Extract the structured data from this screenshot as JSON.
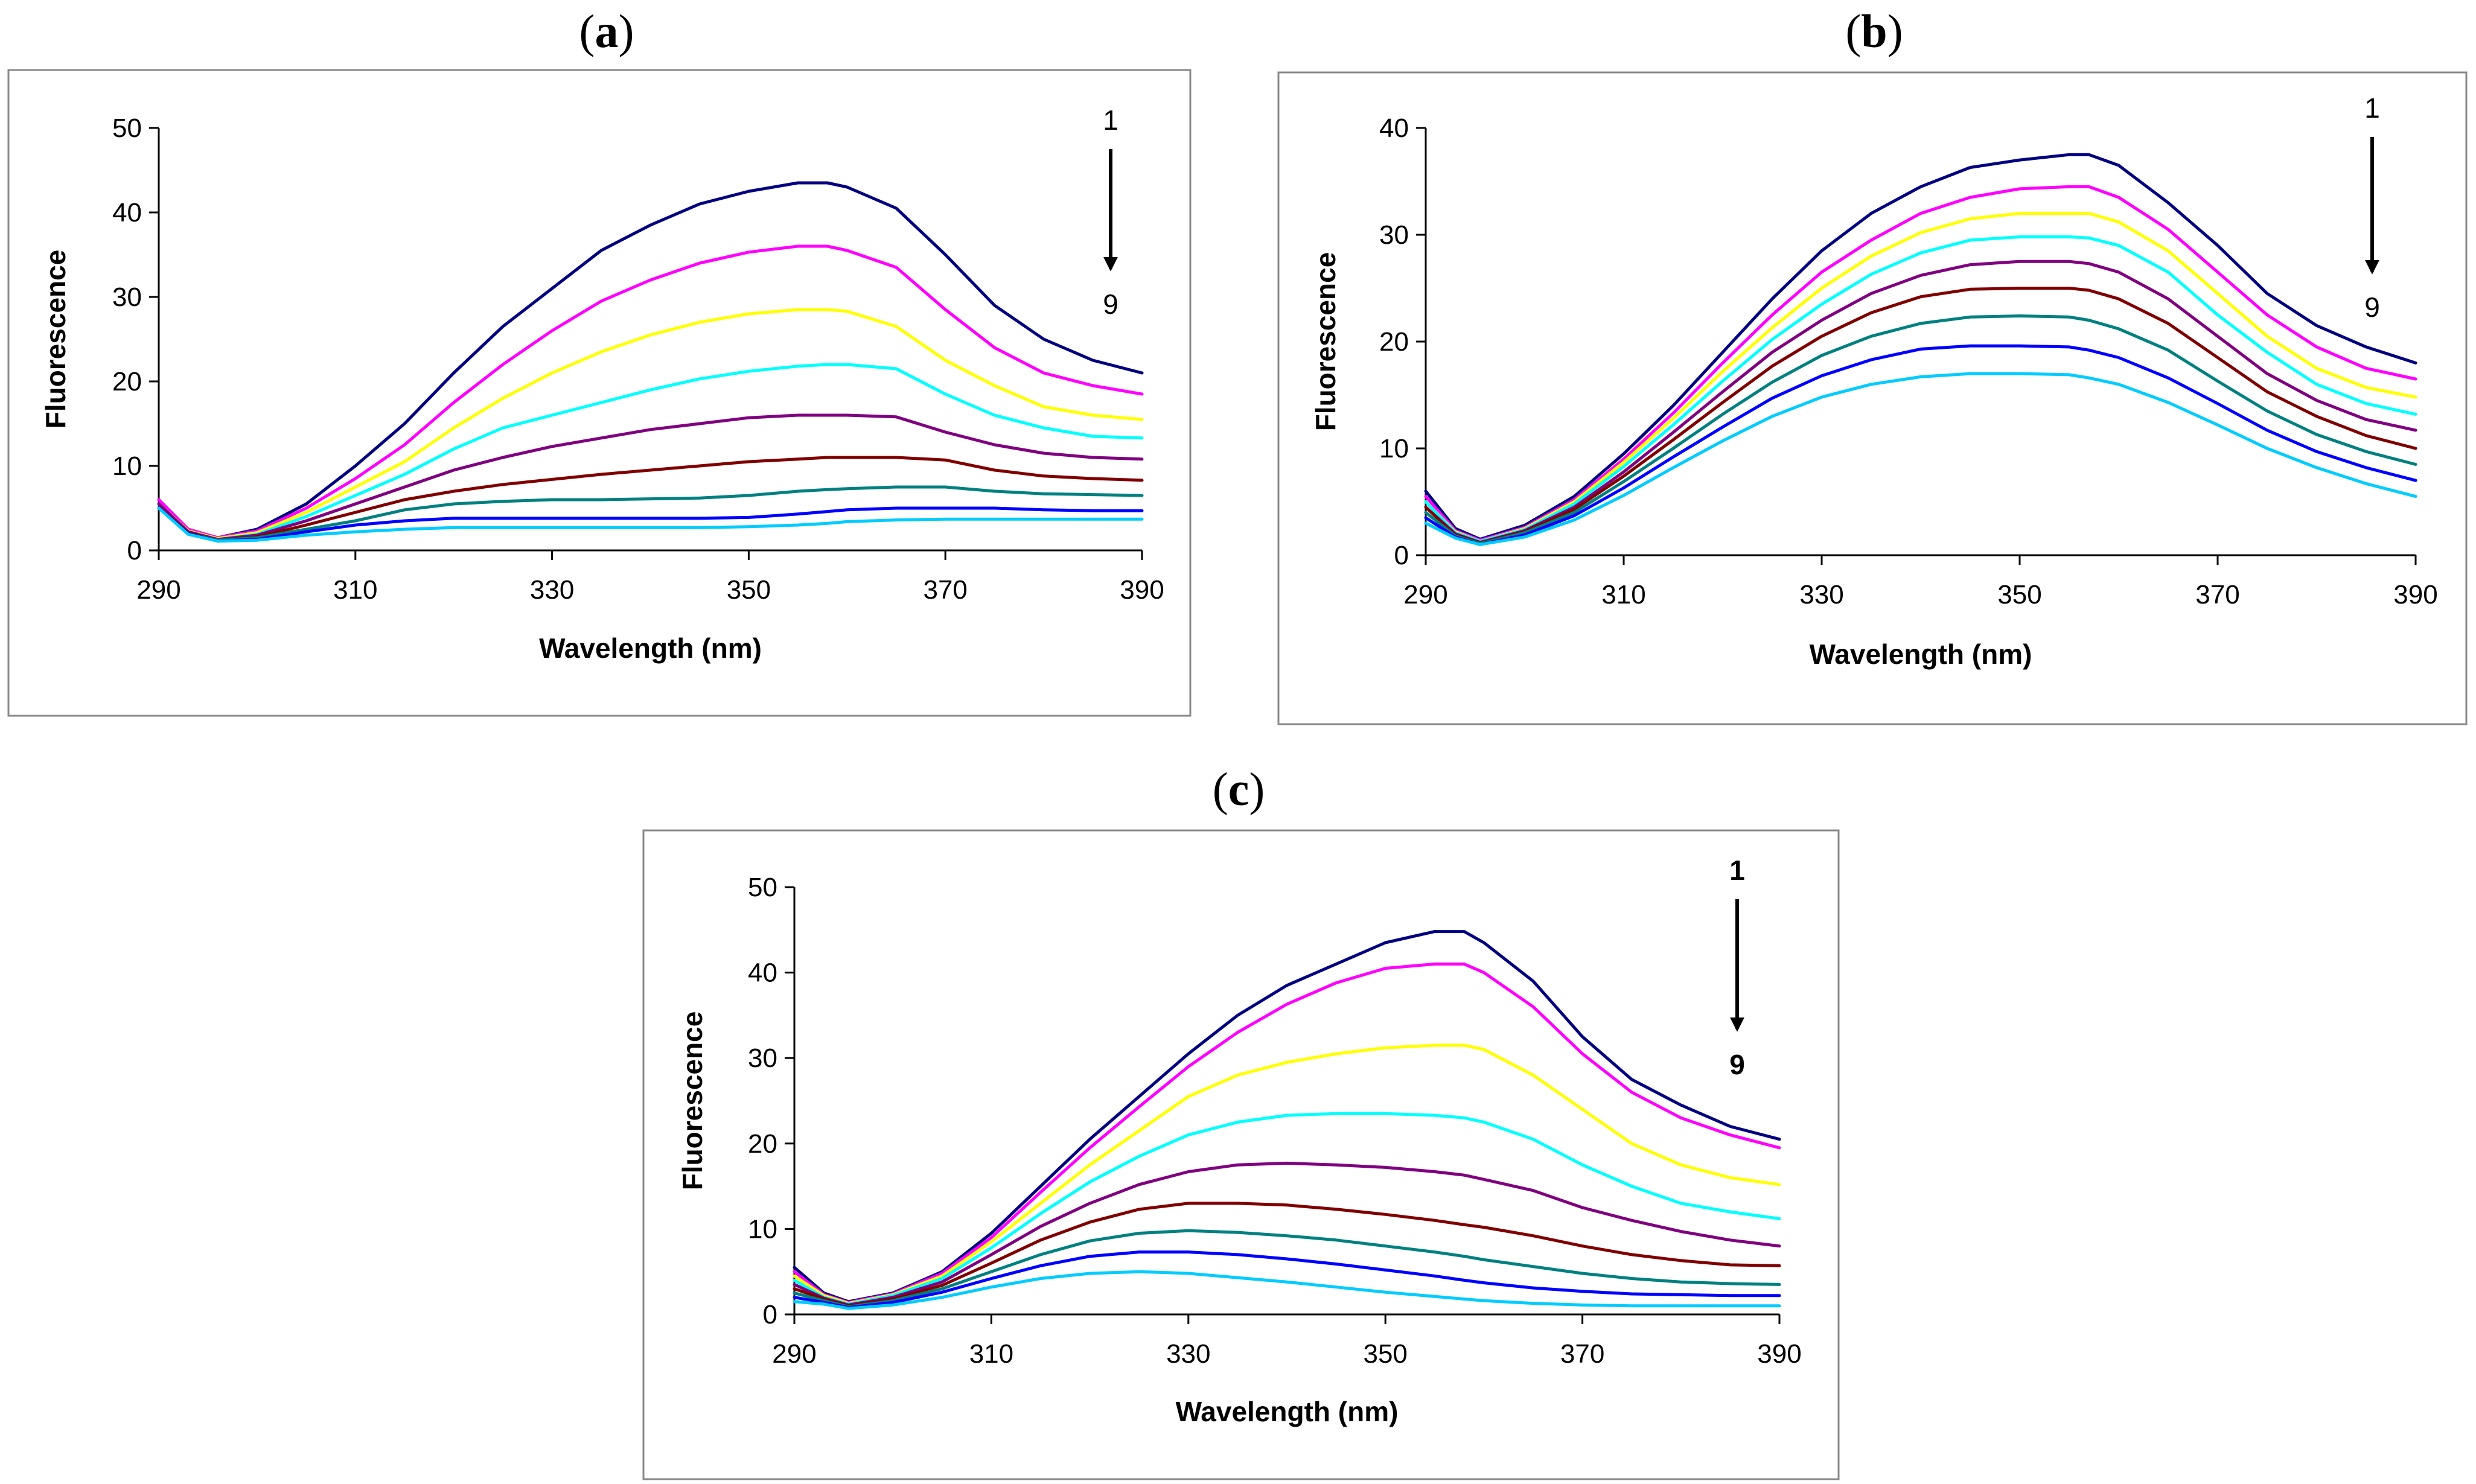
{
  "figure": {
    "panels": [
      {
        "letter": "a",
        "open": "(",
        "close": ")"
      },
      {
        "letter": "b",
        "open": "(",
        "close": ")"
      },
      {
        "letter": "c",
        "open": "(",
        "close": ")"
      }
    ]
  },
  "series_colors": [
    "#000080",
    "#ff00ff",
    "#ffff00",
    "#00ffff",
    "#800080",
    "#800000",
    "#008080",
    "#0000ff",
    "#00ccff"
  ],
  "chart_data": [
    {
      "id": "a",
      "type": "line",
      "xlabel": "Wavelength (nm)",
      "ylabel": "Fluorescence",
      "xlim": [
        290,
        390
      ],
      "ylim": [
        0,
        50
      ],
      "xticks": [
        290,
        310,
        330,
        350,
        370,
        390
      ],
      "yticks": [
        0,
        10,
        20,
        30,
        40,
        50
      ],
      "annotation": {
        "start": "1",
        "end": "9",
        "bold": false
      },
      "x": [
        290,
        293,
        296,
        300,
        305,
        310,
        315,
        320,
        325,
        330,
        335,
        340,
        345,
        350,
        355,
        358,
        360,
        365,
        370,
        375,
        380,
        385,
        390
      ],
      "series": [
        {
          "name": "1",
          "values": [
            6,
            2.5,
            1.5,
            2.5,
            5.5,
            10,
            15,
            21,
            26.5,
            31,
            35.5,
            38.5,
            41,
            42.5,
            43.5,
            43.5,
            43,
            40.5,
            35,
            29,
            25,
            22.5,
            21
          ]
        },
        {
          "name": "2",
          "values": [
            6,
            2.5,
            1.5,
            2.3,
            5,
            8.5,
            12.5,
            17.5,
            22,
            26,
            29.5,
            32,
            34,
            35.3,
            36,
            36,
            35.5,
            33.5,
            28.5,
            24,
            21,
            19.5,
            18.5
          ]
        },
        {
          "name": "3",
          "values": [
            5.5,
            2.3,
            1.4,
            2.1,
            4.5,
            7.5,
            10.5,
            14.5,
            18,
            21,
            23.5,
            25.5,
            27,
            28,
            28.5,
            28.5,
            28.3,
            26.5,
            22.5,
            19.5,
            17,
            16,
            15.5
          ]
        },
        {
          "name": "4",
          "values": [
            5.5,
            2.2,
            1.3,
            1.9,
            4,
            6.5,
            9,
            12,
            14.5,
            16,
            17.5,
            19,
            20.3,
            21.2,
            21.8,
            22,
            22,
            21.5,
            18.5,
            16,
            14.5,
            13.5,
            13.3
          ]
        },
        {
          "name": "5",
          "values": [
            5.5,
            2.2,
            1.3,
            1.8,
            3.5,
            5.5,
            7.5,
            9.5,
            11,
            12.3,
            13.3,
            14.3,
            15,
            15.7,
            16,
            16,
            16,
            15.8,
            14,
            12.5,
            11.5,
            11,
            10.8
          ]
        },
        {
          "name": "6",
          "values": [
            5,
            2.1,
            1.2,
            1.6,
            3,
            4.5,
            6,
            7,
            7.8,
            8.4,
            9,
            9.5,
            10,
            10.5,
            10.8,
            11,
            11,
            11,
            10.7,
            9.5,
            8.8,
            8.5,
            8.3
          ]
        },
        {
          "name": "7",
          "values": [
            5,
            2,
            1.2,
            1.5,
            2.5,
            3.5,
            4.8,
            5.5,
            5.8,
            6,
            6,
            6.1,
            6.2,
            6.5,
            7,
            7.2,
            7.3,
            7.5,
            7.5,
            7,
            6.7,
            6.6,
            6.5
          ]
        },
        {
          "name": "8",
          "values": [
            5,
            2,
            1.1,
            1.3,
            2.2,
            3,
            3.5,
            3.8,
            3.8,
            3.8,
            3.8,
            3.8,
            3.8,
            3.9,
            4.3,
            4.6,
            4.8,
            5,
            5,
            5,
            4.8,
            4.7,
            4.7
          ]
        },
        {
          "name": "9",
          "values": [
            5,
            1.9,
            1.1,
            1.2,
            1.8,
            2.2,
            2.5,
            2.7,
            2.7,
            2.7,
            2.7,
            2.7,
            2.7,
            2.8,
            3,
            3.2,
            3.4,
            3.6,
            3.7,
            3.7,
            3.7,
            3.7,
            3.7
          ]
        }
      ]
    },
    {
      "id": "b",
      "type": "line",
      "xlabel": "Wavelength (nm)",
      "ylabel": "Fluorescence",
      "xlim": [
        290,
        390
      ],
      "ylim": [
        0,
        40
      ],
      "xticks": [
        290,
        310,
        330,
        350,
        370,
        390
      ],
      "yticks": [
        0,
        10,
        20,
        30,
        40
      ],
      "annotation": {
        "start": "1",
        "end": "9",
        "bold": false
      },
      "x": [
        290,
        293,
        295.5,
        300,
        305,
        310,
        315,
        320,
        325,
        330,
        335,
        340,
        345,
        350,
        355,
        357,
        360,
        365,
        370,
        375,
        380,
        385,
        390
      ],
      "series": [
        {
          "name": "1",
          "values": [
            6,
            2.5,
            1.5,
            2.8,
            5.5,
            9.5,
            14,
            19,
            24,
            28.5,
            32,
            34.5,
            36.3,
            37,
            37.5,
            37.5,
            36.5,
            33,
            29,
            24.5,
            21.5,
            19.5,
            18
          ]
        },
        {
          "name": "2",
          "values": [
            5.5,
            2.3,
            1.4,
            2.6,
            5.2,
            9,
            13.3,
            18,
            22.5,
            26.5,
            29.5,
            32,
            33.5,
            34.3,
            34.5,
            34.5,
            33.5,
            30.5,
            26.5,
            22.5,
            19.5,
            17.5,
            16.5
          ]
        },
        {
          "name": "3",
          "values": [
            5,
            2.2,
            1.3,
            2.5,
            5,
            8.7,
            12.8,
            17.2,
            21.3,
            25,
            28,
            30.2,
            31.5,
            32,
            32,
            32,
            31.2,
            28.5,
            24.5,
            20.5,
            17.5,
            15.7,
            14.8
          ]
        },
        {
          "name": "4",
          "values": [
            5,
            2.1,
            1.3,
            2.4,
            4.8,
            8.3,
            12.2,
            16.3,
            20.2,
            23.5,
            26.3,
            28.3,
            29.5,
            29.8,
            29.8,
            29.7,
            29,
            26.5,
            22.5,
            19,
            16,
            14.2,
            13.2
          ]
        },
        {
          "name": "5",
          "values": [
            4.5,
            2,
            1.2,
            2.3,
            4.5,
            7.8,
            11.5,
            15.3,
            19,
            22,
            24.5,
            26.2,
            27.2,
            27.5,
            27.5,
            27.3,
            26.5,
            24,
            20.5,
            17,
            14.5,
            12.7,
            11.7
          ]
        },
        {
          "name": "6",
          "values": [
            4.5,
            1.9,
            1.2,
            2.2,
            4.3,
            7.4,
            10.8,
            14.3,
            17.7,
            20.5,
            22.7,
            24.2,
            24.9,
            25,
            25,
            24.8,
            24,
            21.7,
            18.5,
            15.3,
            13,
            11.2,
            10
          ]
        },
        {
          "name": "7",
          "values": [
            4,
            1.8,
            1.1,
            2.1,
            4,
            6.9,
            10,
            13.2,
            16.2,
            18.7,
            20.5,
            21.7,
            22.3,
            22.4,
            22.3,
            22,
            21.2,
            19.2,
            16.3,
            13.5,
            11.3,
            9.7,
            8.5
          ]
        },
        {
          "name": "8",
          "values": [
            3.5,
            1.7,
            1,
            1.9,
            3.7,
            6.3,
            9.2,
            12,
            14.7,
            16.8,
            18.3,
            19.3,
            19.6,
            19.6,
            19.5,
            19.2,
            18.5,
            16.6,
            14.2,
            11.7,
            9.7,
            8.2,
            7
          ]
        },
        {
          "name": "9",
          "values": [
            3,
            1.6,
            1,
            1.7,
            3.3,
            5.6,
            8.2,
            10.7,
            13,
            14.8,
            16,
            16.7,
            17,
            17,
            16.9,
            16.6,
            16,
            14.3,
            12.2,
            10,
            8.2,
            6.7,
            5.5
          ]
        }
      ]
    },
    {
      "id": "c",
      "type": "line",
      "xlabel": "Wavelength (nm)",
      "ylabel": "Fluorescence",
      "xlim": [
        290,
        390
      ],
      "ylim": [
        0,
        50
      ],
      "xticks": [
        290,
        310,
        330,
        350,
        370,
        390
      ],
      "yticks": [
        0,
        10,
        20,
        30,
        40,
        50
      ],
      "annotation": {
        "start": "1",
        "end": "9",
        "bold": true
      },
      "x": [
        290,
        293,
        295.5,
        300,
        305,
        310,
        315,
        320,
        325,
        330,
        335,
        340,
        345,
        350,
        355,
        358,
        360,
        365,
        370,
        375,
        380,
        385,
        390
      ],
      "series": [
        {
          "name": "1",
          "values": [
            5.5,
            2.5,
            1.5,
            2.5,
            5,
            9.5,
            15,
            20.5,
            25.5,
            30.5,
            35,
            38.5,
            41,
            43.5,
            44.8,
            44.8,
            43.5,
            39,
            32.5,
            27.5,
            24.5,
            22,
            20.5
          ]
        },
        {
          "name": "2",
          "values": [
            5,
            2.3,
            1.4,
            2.4,
            4.8,
            9,
            14.3,
            19.5,
            24.3,
            29,
            33,
            36.3,
            38.8,
            40.5,
            41,
            41,
            40,
            36,
            30.5,
            26,
            23,
            21,
            19.5
          ]
        },
        {
          "name": "3",
          "values": [
            4.5,
            2.2,
            1.3,
            2.3,
            4.5,
            8.5,
            13,
            17.5,
            21.5,
            25.5,
            28,
            29.5,
            30.5,
            31.2,
            31.5,
            31.5,
            31,
            28,
            24,
            20,
            17.5,
            16,
            15.2
          ]
        },
        {
          "name": "4",
          "values": [
            4,
            2,
            1.2,
            2.2,
            4.2,
            7.8,
            11.8,
            15.5,
            18.5,
            21,
            22.5,
            23.3,
            23.5,
            23.5,
            23.3,
            23,
            22.5,
            20.5,
            17.5,
            15,
            13,
            12,
            11.2
          ]
        },
        {
          "name": "5",
          "values": [
            3.5,
            1.9,
            1.1,
            2,
            3.8,
            7,
            10.3,
            13,
            15.2,
            16.7,
            17.5,
            17.7,
            17.5,
            17.2,
            16.7,
            16.3,
            15.8,
            14.5,
            12.5,
            11,
            9.7,
            8.7,
            8
          ]
        },
        {
          "name": "6",
          "values": [
            3,
            1.8,
            1,
            1.8,
            3.4,
            6,
            8.7,
            10.8,
            12.3,
            13,
            13,
            12.8,
            12.3,
            11.7,
            11,
            10.5,
            10.2,
            9.2,
            8,
            7,
            6.3,
            5.8,
            5.7
          ]
        },
        {
          "name": "7",
          "values": [
            2.5,
            1.6,
            0.9,
            1.6,
            3,
            5,
            7,
            8.6,
            9.5,
            9.8,
            9.6,
            9.2,
            8.7,
            8,
            7.3,
            6.8,
            6.4,
            5.6,
            4.8,
            4.2,
            3.8,
            3.6,
            3.5
          ]
        },
        {
          "name": "8",
          "values": [
            2,
            1.4,
            0.8,
            1.4,
            2.6,
            4.2,
            5.7,
            6.8,
            7.3,
            7.3,
            7,
            6.5,
            5.9,
            5.2,
            4.5,
            4,
            3.7,
            3.1,
            2.7,
            2.4,
            2.3,
            2.2,
            2.2
          ]
        },
        {
          "name": "9",
          "values": [
            1.5,
            1.2,
            0.7,
            1.1,
            2,
            3.2,
            4.2,
            4.8,
            5,
            4.8,
            4.3,
            3.8,
            3.2,
            2.6,
            2.1,
            1.8,
            1.6,
            1.3,
            1.1,
            1,
            1,
            1,
            1
          ]
        }
      ]
    }
  ]
}
